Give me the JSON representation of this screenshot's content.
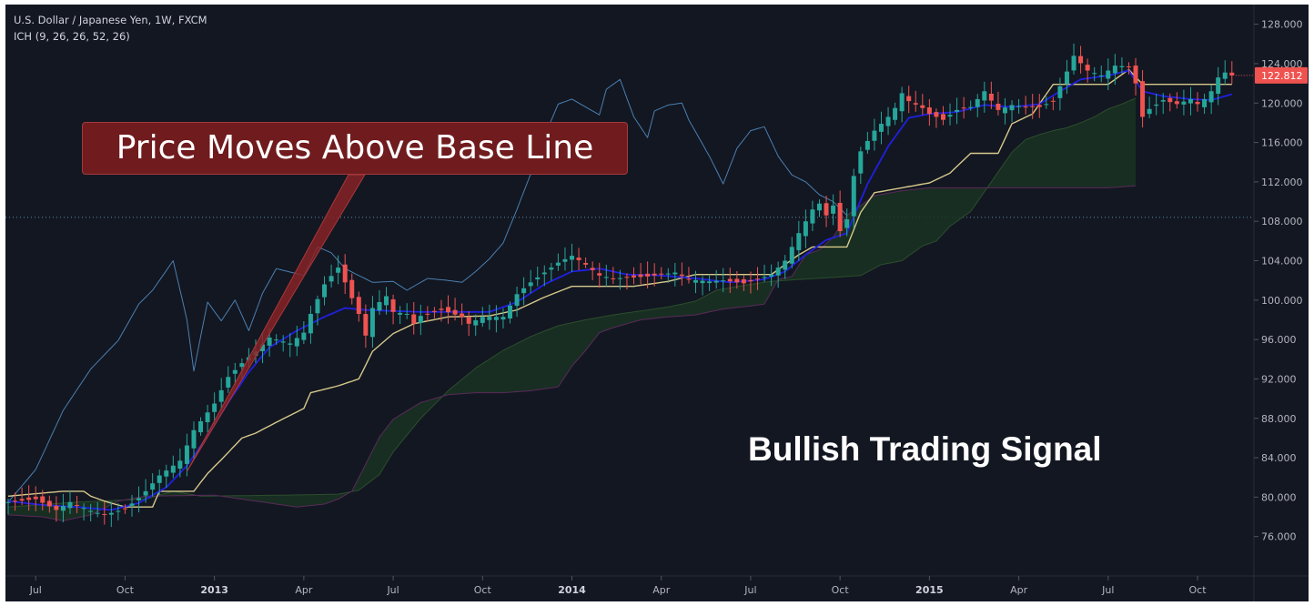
{
  "header": {
    "symbol_line": "U.S. Dollar / Japanese Yen, 1W, FXCM",
    "indicator_line": "ICH (9, 26, 26, 52, 26)"
  },
  "annotations": {
    "callout_text": "Price Moves Above Base Line",
    "signal_text": "Bullish Trading Signal"
  },
  "price_badge": "122.812",
  "colors": {
    "background": "#131722",
    "up_candle": "#26a69a",
    "down_candle": "#ef5350",
    "conversion_line": "#2020e0",
    "base_line": "#d7c98a",
    "lagging_span": "#4a7fb0",
    "cloud_fill": "#1a3322",
    "cloud_edge_green": "#2c4d2c",
    "cloud_edge_purple": "#5a2a5a",
    "callout_bg": "#701b1e",
    "price_badge": "#ef5350"
  },
  "chart_data": {
    "type": "candlestick",
    "title": "U.S. Dollar / Japanese Yen, 1W, FXCM",
    "indicator": "ICH (9, 26, 26, 52, 26)",
    "y_ticks": [
      "128.000",
      "124.000",
      "120.000",
      "116.000",
      "112.000",
      "108.000",
      "104.000",
      "100.000",
      "96.000",
      "92.000",
      "88.000",
      "84.000",
      "80.000",
      "76.000"
    ],
    "ylim": [
      72,
      130
    ],
    "x_ticks": [
      {
        "label": "Jul",
        "week": 4,
        "bold": false
      },
      {
        "label": "Oct",
        "week": 17,
        "bold": false
      },
      {
        "label": "2013",
        "week": 30,
        "bold": true
      },
      {
        "label": "Apr",
        "week": 43,
        "bold": false
      },
      {
        "label": "Jul",
        "week": 56,
        "bold": false
      },
      {
        "label": "Oct",
        "week": 69,
        "bold": false
      },
      {
        "label": "2014",
        "week": 82,
        "bold": true
      },
      {
        "label": "Apr",
        "week": 95,
        "bold": false
      },
      {
        "label": "Jul",
        "week": 108,
        "bold": false
      },
      {
        "label": "Oct",
        "week": 121,
        "bold": false
      },
      {
        "label": "2015",
        "week": 134,
        "bold": true
      },
      {
        "label": "Apr",
        "week": 147,
        "bold": false
      },
      {
        "label": "Jul",
        "week": 160,
        "bold": false
      },
      {
        "label": "Oct",
        "week": 173,
        "bold": false
      }
    ],
    "last_price": 122.812,
    "reference_line": 108.4,
    "price_anchors": [
      [
        0,
        79.5
      ],
      [
        4,
        79.8
      ],
      [
        7,
        78.7
      ],
      [
        9,
        79.5
      ],
      [
        12,
        78.6
      ],
      [
        14,
        78.2
      ],
      [
        17,
        78.8
      ],
      [
        19,
        79.9
      ],
      [
        20,
        80.6
      ],
      [
        22,
        82.2
      ],
      [
        25,
        83.7
      ],
      [
        27,
        86.8
      ],
      [
        30,
        89.5
      ],
      [
        32,
        92.2
      ],
      [
        34,
        93.6
      ],
      [
        36,
        94.8
      ],
      [
        38,
        96.2
      ],
      [
        41,
        95.6
      ],
      [
        43,
        96.7
      ],
      [
        44,
        98.6
      ],
      [
        46,
        101.6
      ],
      [
        48,
        103.3
      ],
      [
        49,
        101.8
      ],
      [
        51,
        98.6
      ],
      [
        52,
        96.4
      ],
      [
        53,
        99.2
      ],
      [
        55,
        100.4
      ],
      [
        56,
        98.8
      ],
      [
        58,
        98.6
      ],
      [
        59,
        97.6
      ],
      [
        60,
        98.4
      ],
      [
        63,
        99.0
      ],
      [
        66,
        98.3
      ],
      [
        67,
        97.6
      ],
      [
        69,
        98.3
      ],
      [
        72,
        98.3
      ],
      [
        74,
        100.6
      ],
      [
        76,
        101.8
      ],
      [
        78,
        102.8
      ],
      [
        80,
        103.8
      ],
      [
        82,
        104.5
      ],
      [
        84,
        103.6
      ],
      [
        86,
        102.5
      ],
      [
        88,
        102.2
      ],
      [
        91,
        102.3
      ],
      [
        93,
        102.4
      ],
      [
        95,
        102.6
      ],
      [
        97,
        102.8
      ],
      [
        99,
        102.1
      ],
      [
        102,
        101.9
      ],
      [
        104,
        102.0
      ],
      [
        107,
        101.7
      ],
      [
        109,
        102.1
      ],
      [
        111,
        102.6
      ],
      [
        113,
        104.0
      ],
      [
        115,
        106.8
      ],
      [
        117,
        109.2
      ],
      [
        118,
        109.8
      ],
      [
        119,
        108.6
      ],
      [
        120,
        109.6
      ],
      [
        121,
        107.0
      ],
      [
        122,
        108.2
      ],
      [
        123,
        112.6
      ],
      [
        124,
        115.1
      ],
      [
        126,
        117.2
      ],
      [
        128,
        118.6
      ],
      [
        129,
        119.5
      ],
      [
        130,
        121.0
      ],
      [
        131,
        120.2
      ],
      [
        133,
        119.5
      ],
      [
        134,
        118.9
      ],
      [
        136,
        118.3
      ],
      [
        138,
        119.3
      ],
      [
        140,
        119.6
      ],
      [
        142,
        121.2
      ],
      [
        144,
        119.3
      ],
      [
        146,
        119.8
      ],
      [
        148,
        119.6
      ],
      [
        150,
        119.6
      ],
      [
        152,
        120.2
      ],
      [
        154,
        123.2
      ],
      [
        155,
        124.8
      ],
      [
        157,
        123.3
      ],
      [
        159,
        122.8
      ],
      [
        161,
        123.8
      ],
      [
        163,
        123.7
      ],
      [
        164,
        122.0
      ],
      [
        165,
        118.6
      ],
      [
        166,
        119.4
      ],
      [
        168,
        120.3
      ],
      [
        170,
        119.9
      ],
      [
        172,
        120.4
      ],
      [
        173,
        119.9
      ],
      [
        174,
        120.4
      ],
      [
        175,
        121.2
      ],
      [
        176,
        122.6
      ],
      [
        177,
        123.1
      ],
      [
        178,
        122.8
      ]
    ],
    "conversion_line_anchors": [
      [
        0,
        79.6
      ],
      [
        5,
        79.2
      ],
      [
        10,
        79.0
      ],
      [
        15,
        78.7
      ],
      [
        19,
        79.4
      ],
      [
        23,
        81.0
      ],
      [
        26,
        83.2
      ],
      [
        29,
        86.2
      ],
      [
        32,
        89.6
      ],
      [
        35,
        92.7
      ],
      [
        38,
        95.2
      ],
      [
        42,
        96.9
      ],
      [
        46,
        98.3
      ],
      [
        49,
        99.2
      ],
      [
        52,
        99.0
      ],
      [
        56,
        98.9
      ],
      [
        60,
        98.8
      ],
      [
        66,
        98.8
      ],
      [
        70,
        98.8
      ],
      [
        74,
        99.8
      ],
      [
        78,
        101.6
      ],
      [
        82,
        102.9
      ],
      [
        86,
        103.2
      ],
      [
        90,
        102.6
      ],
      [
        95,
        102.5
      ],
      [
        100,
        102.2
      ],
      [
        105,
        101.8
      ],
      [
        110,
        102.1
      ],
      [
        113,
        102.9
      ],
      [
        116,
        104.6
      ],
      [
        119,
        106.1
      ],
      [
        122,
        106.8
      ],
      [
        125,
        111.8
      ],
      [
        128,
        115.6
      ],
      [
        131,
        118.5
      ],
      [
        134,
        118.9
      ],
      [
        138,
        119.1
      ],
      [
        142,
        119.8
      ],
      [
        146,
        119.6
      ],
      [
        150,
        119.9
      ],
      [
        153,
        121.2
      ],
      [
        156,
        122.4
      ],
      [
        160,
        122.8
      ],
      [
        163,
        123.3
      ],
      [
        165,
        121.2
      ],
      [
        168,
        120.7
      ],
      [
        172,
        120.4
      ],
      [
        175,
        120.3
      ],
      [
        178,
        120.9
      ]
    ],
    "base_line_anchors": [
      [
        0,
        80.1
      ],
      [
        8,
        80.6
      ],
      [
        11,
        80.6
      ],
      [
        12,
        80.1
      ],
      [
        14,
        79.6
      ],
      [
        17,
        79.0
      ],
      [
        21,
        79.0
      ],
      [
        22,
        80.6
      ],
      [
        27,
        80.6
      ],
      [
        29,
        82.4
      ],
      [
        31,
        83.8
      ],
      [
        34,
        86.0
      ],
      [
        36,
        86.5
      ],
      [
        39,
        87.6
      ],
      [
        43,
        89.0
      ],
      [
        44,
        90.6
      ],
      [
        48,
        91.3
      ],
      [
        51,
        92.0
      ],
      [
        53,
        94.8
      ],
      [
        56,
        96.6
      ],
      [
        59,
        97.6
      ],
      [
        64,
        98.3
      ],
      [
        70,
        98.4
      ],
      [
        74,
        99.0
      ],
      [
        78,
        100.3
      ],
      [
        82,
        101.4
      ],
      [
        86,
        101.4
      ],
      [
        91,
        101.4
      ],
      [
        96,
        101.9
      ],
      [
        100,
        102.6
      ],
      [
        104,
        102.6
      ],
      [
        108,
        102.6
      ],
      [
        111,
        102.6
      ],
      [
        113,
        103.6
      ],
      [
        115,
        104.6
      ],
      [
        117,
        105.4
      ],
      [
        122,
        105.4
      ],
      [
        124,
        108.9
      ],
      [
        126,
        110.9
      ],
      [
        130,
        111.4
      ],
      [
        134,
        111.9
      ],
      [
        137,
        112.9
      ],
      [
        140,
        114.9
      ],
      [
        144,
        114.9
      ],
      [
        146,
        117.9
      ],
      [
        149,
        118.9
      ],
      [
        152,
        121.9
      ],
      [
        154,
        121.9
      ],
      [
        157,
        121.9
      ],
      [
        160,
        121.9
      ],
      [
        163,
        123.4
      ],
      [
        165,
        121.9
      ],
      [
        178,
        121.9
      ]
    ],
    "lagging_span_anchors": [
      [
        0,
        79.5
      ],
      [
        4,
        82.8
      ],
      [
        8,
        88.8
      ],
      [
        12,
        93.0
      ],
      [
        16,
        95.9
      ],
      [
        19,
        99.6
      ],
      [
        21,
        101.0
      ],
      [
        24,
        104.0
      ],
      [
        26,
        98.0
      ],
      [
        27,
        92.8
      ],
      [
        29,
        99.8
      ],
      [
        31,
        97.9
      ],
      [
        33,
        100.0
      ],
      [
        35,
        96.9
      ],
      [
        37,
        100.7
      ],
      [
        39,
        103.2
      ],
      [
        43,
        102.5
      ],
      [
        45,
        105.4
      ],
      [
        47,
        104.8
      ],
      [
        49,
        103.2
      ],
      [
        53,
        101.8
      ],
      [
        56,
        101.9
      ],
      [
        58,
        101.0
      ],
      [
        61,
        102.2
      ],
      [
        64,
        102.0
      ],
      [
        66,
        101.8
      ],
      [
        68,
        102.9
      ],
      [
        70,
        104.2
      ],
      [
        72,
        105.8
      ],
      [
        74,
        109.2
      ],
      [
        76,
        112.8
      ],
      [
        78,
        116.6
      ],
      [
        80,
        119.9
      ],
      [
        82,
        120.4
      ],
      [
        84,
        119.6
      ],
      [
        86,
        118.8
      ],
      [
        87,
        121.4
      ],
      [
        89,
        122.4
      ],
      [
        91,
        118.6
      ],
      [
        93,
        116.5
      ],
      [
        94,
        119.2
      ],
      [
        96,
        119.8
      ],
      [
        98,
        120.0
      ],
      [
        99,
        118.3
      ],
      [
        102,
        114.6
      ],
      [
        104,
        111.8
      ],
      [
        106,
        115.4
      ],
      [
        108,
        117.2
      ],
      [
        110,
        117.6
      ],
      [
        112,
        114.6
      ],
      [
        114,
        112.7
      ],
      [
        116,
        112.0
      ],
      [
        118,
        110.7
      ],
      [
        120,
        110.0
      ],
      [
        122,
        108.6
      ]
    ],
    "cloud": {
      "top_anchors": [
        [
          0,
          79.0
        ],
        [
          10,
          79.5
        ],
        [
          20,
          79.8
        ],
        [
          24,
          80.6
        ],
        [
          28,
          80.1
        ],
        [
          40,
          80.2
        ],
        [
          48,
          80.3
        ],
        [
          51,
          80.7
        ],
        [
          54,
          82.3
        ],
        [
          56,
          84.6
        ],
        [
          60,
          88.0
        ],
        [
          64,
          90.8
        ],
        [
          68,
          93.1
        ],
        [
          72,
          94.9
        ],
        [
          76,
          96.3
        ],
        [
          80,
          97.4
        ],
        [
          84,
          98.0
        ],
        [
          88,
          98.5
        ],
        [
          92,
          98.9
        ],
        [
          96,
          99.3
        ],
        [
          100,
          99.9
        ],
        [
          103,
          101.0
        ],
        [
          107,
          101.5
        ],
        [
          111,
          101.9
        ],
        [
          115,
          102.1
        ],
        [
          120,
          102.3
        ],
        [
          124,
          102.5
        ],
        [
          127,
          103.6
        ],
        [
          130,
          104.0
        ],
        [
          133,
          105.5
        ],
        [
          135,
          106.0
        ],
        [
          137,
          107.5
        ],
        [
          140,
          109.0
        ],
        [
          142,
          111.0
        ],
        [
          144,
          113.0
        ],
        [
          146,
          115.0
        ],
        [
          148,
          116.3
        ],
        [
          150,
          116.8
        ],
        [
          152,
          117.2
        ],
        [
          154,
          117.5
        ],
        [
          156,
          118.0
        ],
        [
          158,
          118.6
        ],
        [
          160,
          119.4
        ],
        [
          162,
          119.9
        ],
        [
          164,
          120.5
        ]
      ],
      "bottom_anchors": [
        [
          0,
          78.2
        ],
        [
          5,
          78.0
        ],
        [
          8,
          77.6
        ],
        [
          12,
          78.2
        ],
        [
          16,
          79.6
        ],
        [
          20,
          80.1
        ],
        [
          30,
          80.2
        ],
        [
          38,
          79.4
        ],
        [
          42,
          79.0
        ],
        [
          46,
          79.3
        ],
        [
          48,
          79.8
        ],
        [
          50,
          80.6
        ],
        [
          54,
          86.1
        ],
        [
          56,
          87.9
        ],
        [
          60,
          89.6
        ],
        [
          64,
          90.4
        ],
        [
          68,
          90.6
        ],
        [
          72,
          90.6
        ],
        [
          76,
          90.8
        ],
        [
          80,
          91.2
        ],
        [
          82,
          93.3
        ],
        [
          84,
          94.9
        ],
        [
          86,
          96.7
        ],
        [
          88,
          97.2
        ],
        [
          92,
          98.0
        ],
        [
          96,
          98.3
        ],
        [
          100,
          98.5
        ],
        [
          104,
          99.1
        ],
        [
          108,
          99.4
        ],
        [
          110,
          99.6
        ],
        [
          112,
          102.1
        ],
        [
          114,
          102.4
        ],
        [
          116,
          104.6
        ],
        [
          118,
          105.1
        ],
        [
          120,
          106.4
        ],
        [
          122,
          108.6
        ],
        [
          126,
          110.6
        ],
        [
          130,
          111.1
        ],
        [
          134,
          111.4
        ],
        [
          138,
          111.4
        ],
        [
          142,
          111.4
        ],
        [
          146,
          111.4
        ],
        [
          150,
          111.4
        ],
        [
          154,
          111.4
        ],
        [
          160,
          111.4
        ],
        [
          164,
          111.6
        ]
      ]
    }
  }
}
